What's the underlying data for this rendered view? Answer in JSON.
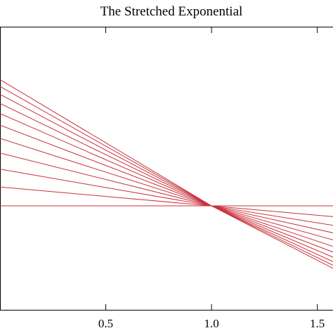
{
  "chart_data": {
    "type": "line",
    "title": "The Stretched Exponential",
    "xlabel": "",
    "ylabel": "",
    "xlim": [
      0.0,
      1.8
    ],
    "ylim": [
      0.0,
      1.0
    ],
    "x_ticks": [
      {
        "value": 0.5,
        "label": "0.5"
      },
      {
        "value": 1.0,
        "label": "1.0"
      },
      {
        "value": 1.5,
        "label": "1.5"
      }
    ],
    "y_ticks": [],
    "grid": false,
    "legend": "none",
    "line_color": "#c8323c",
    "series": [
      {
        "x": [
          0.0,
          1.0,
          1.8
        ],
        "values": [
          0.368,
          0.368,
          0.368
        ]
      },
      {
        "x": [
          0.0,
          1.0,
          1.8
        ],
        "values": [
          0.435,
          0.368,
          0.315
        ]
      },
      {
        "x": [
          0.0,
          1.0,
          1.8
        ],
        "values": [
          0.498,
          0.368,
          0.272
        ]
      },
      {
        "x": [
          0.0,
          1.0,
          1.8
        ],
        "values": [
          0.555,
          0.368,
          0.235
        ]
      },
      {
        "x": [
          0.0,
          1.0,
          1.8
        ],
        "values": [
          0.607,
          0.368,
          0.2
        ]
      },
      {
        "x": [
          0.0,
          1.0,
          1.8
        ],
        "values": [
          0.654,
          0.368,
          0.168
        ]
      },
      {
        "x": [
          0.0,
          1.0,
          1.8
        ],
        "values": [
          0.695,
          0.368,
          0.14
        ]
      },
      {
        "x": [
          0.0,
          1.0,
          1.8
        ],
        "values": [
          0.731,
          0.368,
          0.115
        ]
      },
      {
        "x": [
          0.0,
          1.0,
          1.8
        ],
        "values": [
          0.763,
          0.368,
          0.093
        ]
      },
      {
        "x": [
          0.0,
          1.0,
          1.8
        ],
        "values": [
          0.791,
          0.368,
          0.075
        ]
      },
      {
        "x": [
          0.0,
          1.0,
          1.8
        ],
        "values": [
          0.815,
          0.368,
          0.06
        ]
      }
    ]
  }
}
